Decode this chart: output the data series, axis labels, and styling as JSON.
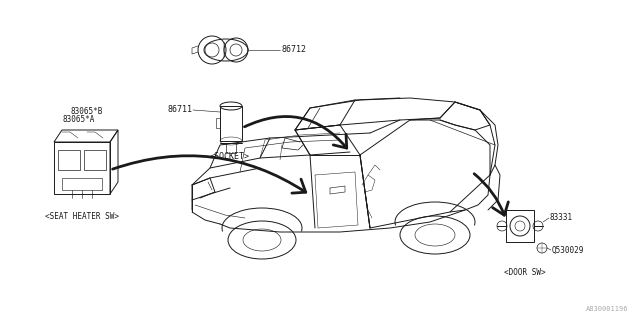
{
  "background_color": "#ffffff",
  "line_color": "#1a1a1a",
  "line_color_light": "#555555",
  "fig_width": 6.4,
  "fig_height": 3.2,
  "dpi": 100,
  "diagram_code": "A830001196",
  "label_86712": "86712",
  "label_86711": "86711",
  "label_socket": "<SOCKET>",
  "label_83065B": "83065*B",
  "label_83065A": "83065*A",
  "label_seat_heater": "<SEAT HEATER SW>",
  "label_83331": "83331",
  "label_Q530029": "Q530029",
  "label_door_sw": "<DOOR SW>",
  "font_size_label": 6.0,
  "font_size_code": 5.0
}
